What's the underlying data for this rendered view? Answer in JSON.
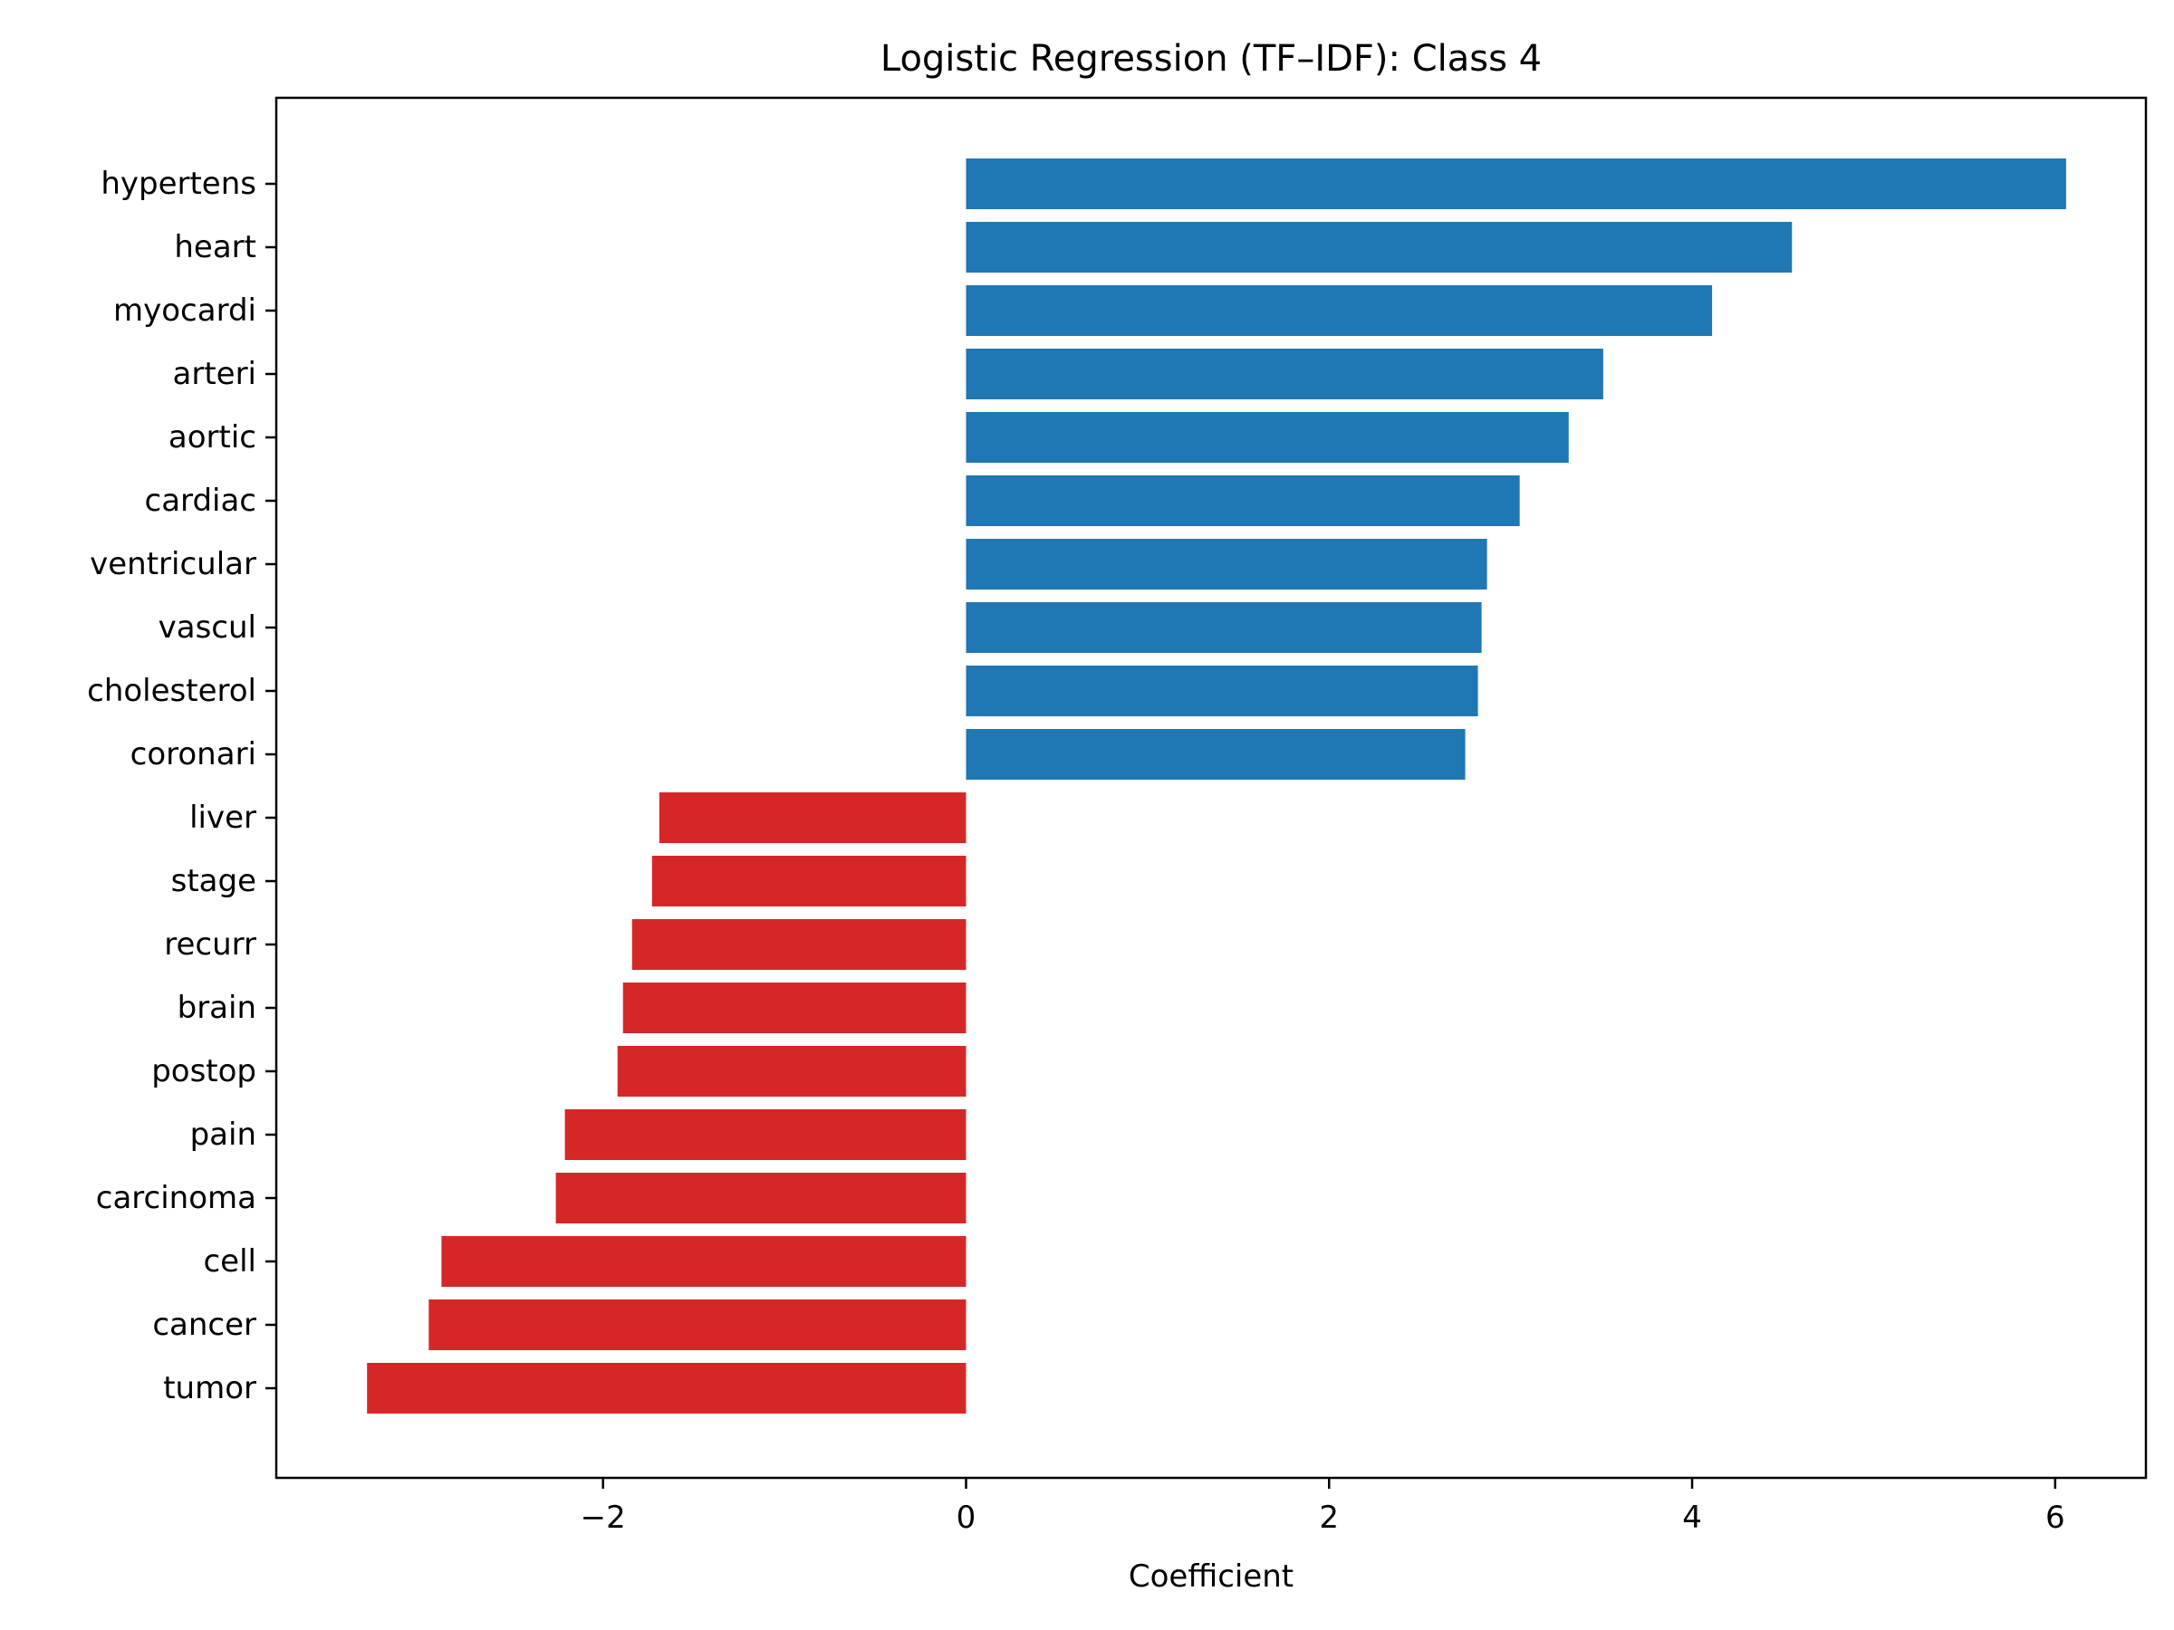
{
  "chart_data": {
    "type": "bar",
    "orientation": "horizontal",
    "title": "Logistic Regression (TF–IDF): Class 4",
    "xlabel": "Coefficient",
    "ylabel": "",
    "xlim": [
      -3.8,
      6.5
    ],
    "xticks": [
      -2,
      0,
      2,
      4,
      6
    ],
    "xtick_labels": [
      "−2",
      "0",
      "2",
      "4",
      "6"
    ],
    "grid": false,
    "legend": "none",
    "colors": {
      "positive": "#1f77b4",
      "negative": "#d62728"
    },
    "categories": [
      "hypertens",
      "heart",
      "myocardi",
      "arteri",
      "aortic",
      "cardiac",
      "ventricular",
      "vascul",
      "cholesterol",
      "coronari",
      "liver",
      "stage",
      "recurr",
      "brain",
      "postop",
      "pain",
      "carcinoma",
      "cell",
      "cancer",
      "tumor"
    ],
    "values": [
      6.06,
      4.55,
      4.11,
      3.51,
      3.32,
      3.05,
      2.87,
      2.84,
      2.82,
      2.75,
      -1.69,
      -1.73,
      -1.84,
      -1.89,
      -1.92,
      -2.21,
      -2.26,
      -2.89,
      -2.96,
      -3.3
    ]
  }
}
